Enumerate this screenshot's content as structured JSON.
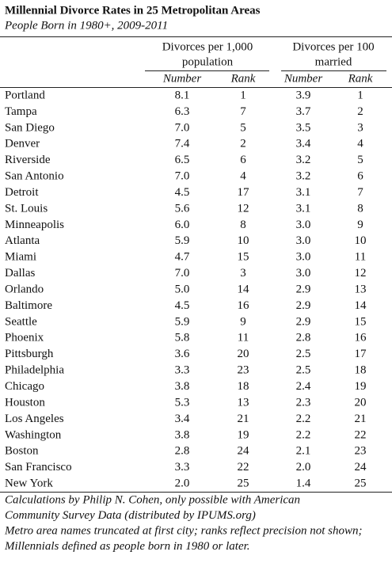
{
  "header": {
    "title": "Millennial Divorce Rates in 25 Metropolitan Areas",
    "subtitle": "People Born in 1980+, 2009-2011"
  },
  "table": {
    "groups": [
      {
        "lines": [
          "Divorces per 1,000",
          "population"
        ]
      },
      {
        "lines": [
          "Divorces per 100",
          "married"
        ]
      }
    ],
    "subheaders": [
      "Number",
      "Rank",
      "Number",
      "Rank"
    ],
    "rows": [
      [
        "Portland",
        "8.1",
        "1",
        "3.9",
        "1"
      ],
      [
        "Tampa",
        "6.3",
        "7",
        "3.7",
        "2"
      ],
      [
        "San Diego",
        "7.0",
        "5",
        "3.5",
        "3"
      ],
      [
        "Denver",
        "7.4",
        "2",
        "3.4",
        "4"
      ],
      [
        "Riverside",
        "6.5",
        "6",
        "3.2",
        "5"
      ],
      [
        "San Antonio",
        "7.0",
        "4",
        "3.2",
        "6"
      ],
      [
        "Detroit",
        "4.5",
        "17",
        "3.1",
        "7"
      ],
      [
        "St. Louis",
        "5.6",
        "12",
        "3.1",
        "8"
      ],
      [
        "Minneapolis",
        "6.0",
        "8",
        "3.0",
        "9"
      ],
      [
        "Atlanta",
        "5.9",
        "10",
        "3.0",
        "10"
      ],
      [
        "Miami",
        "4.7",
        "15",
        "3.0",
        "11"
      ],
      [
        "Dallas",
        "7.0",
        "3",
        "3.0",
        "12"
      ],
      [
        "Orlando",
        "5.0",
        "14",
        "2.9",
        "13"
      ],
      [
        "Baltimore",
        "4.5",
        "16",
        "2.9",
        "14"
      ],
      [
        "Seattle",
        "5.9",
        "9",
        "2.9",
        "15"
      ],
      [
        "Phoenix",
        "5.8",
        "11",
        "2.8",
        "16"
      ],
      [
        "Pittsburgh",
        "3.6",
        "20",
        "2.5",
        "17"
      ],
      [
        "Philadelphia",
        "3.3",
        "23",
        "2.5",
        "18"
      ],
      [
        "Chicago",
        "3.8",
        "18",
        "2.4",
        "19"
      ],
      [
        "Houston",
        "5.3",
        "13",
        "2.3",
        "20"
      ],
      [
        "Los Angeles",
        "3.4",
        "21",
        "2.2",
        "21"
      ],
      [
        "Washington",
        "3.8",
        "19",
        "2.2",
        "22"
      ],
      [
        "Boston",
        "2.8",
        "24",
        "2.1",
        "23"
      ],
      [
        "San Francisco",
        "3.3",
        "22",
        "2.0",
        "24"
      ],
      [
        "New York",
        "2.0",
        "25",
        "1.4",
        "25"
      ]
    ]
  },
  "footnotes": [
    "Calculations by Philip N. Cohen, only possible with American",
    "Community Survey Data (distributed by IPUMS.org)",
    "Metro area names truncated at first city; ranks reflect precision not shown;",
    "Millennials defined as people born in 1980 or later."
  ]
}
